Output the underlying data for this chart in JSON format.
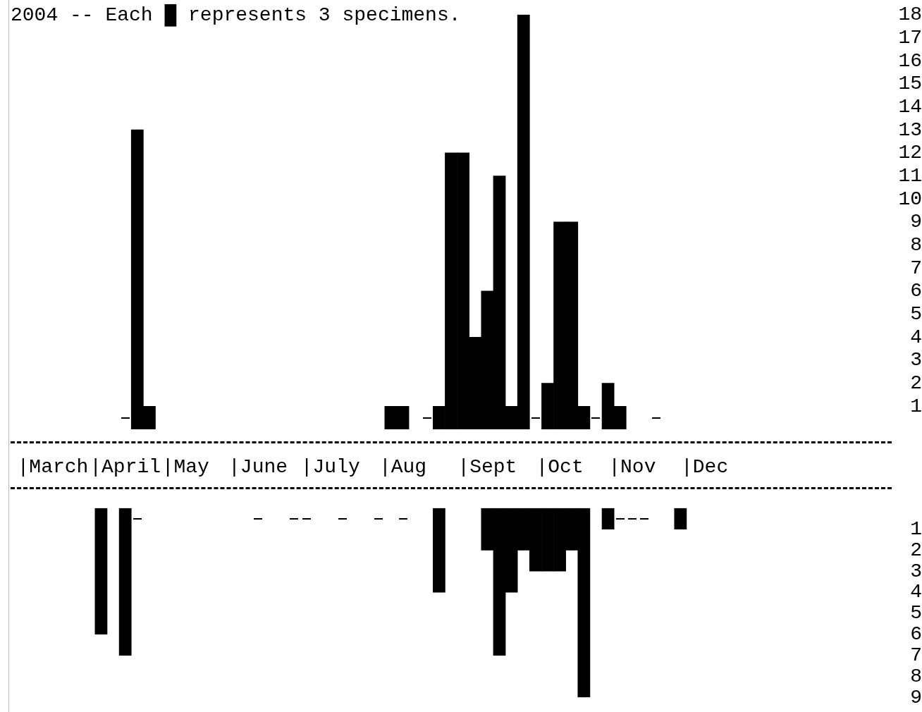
{
  "chart_data": [
    {
      "type": "bar",
      "title": "2004 -- Each █ represents 3 specimens.",
      "color": "#000000",
      "grid": false,
      "categories": [
        null,
        null,
        null,
        "|March",
        null,
        null,
        null,
        null,
        null,
        "|April",
        null,
        null,
        null,
        null,
        "|May",
        null,
        null,
        null,
        null,
        null,
        "|June",
        null,
        null,
        null,
        null,
        null,
        "|July",
        null,
        null,
        null,
        null,
        null,
        "|Aug",
        null,
        null,
        null,
        null,
        null,
        null,
        "|Sept",
        null,
        null,
        null,
        null,
        null,
        "|Oct",
        null,
        null,
        null,
        null,
        null,
        "|Nov",
        null,
        null,
        null,
        null,
        null,
        "|Dec",
        null,
        null,
        null,
        null,
        null,
        null,
        null,
        null,
        null,
        null,
        null,
        null,
        null,
        null,
        null
      ],
      "values": [
        null,
        null,
        null,
        null,
        null,
        null,
        null,
        null,
        null,
        0,
        13,
        1,
        null,
        null,
        null,
        null,
        null,
        null,
        null,
        null,
        null,
        null,
        null,
        null,
        null,
        null,
        null,
        null,
        null,
        null,
        null,
        1,
        1,
        null,
        0,
        1,
        12,
        12,
        4,
        6,
        11,
        1,
        18,
        0,
        2,
        9,
        9,
        1,
        0,
        2,
        1,
        null,
        null,
        0,
        null,
        null,
        null,
        null,
        null,
        null,
        null,
        null,
        null,
        null,
        null,
        null,
        null,
        null,
        null,
        null,
        null,
        null,
        null
      ],
      "ylim": [
        0,
        18
      ],
      "yticks": [
        1,
        2,
        3,
        4,
        5,
        6,
        7,
        8,
        9,
        10,
        11,
        12,
        13,
        14,
        15,
        16,
        17,
        18
      ]
    },
    {
      "type": "bar",
      "color": "#000000",
      "grid": false,
      "tick_labels": "y",
      "categories": [
        null,
        null,
        null,
        null,
        null,
        null,
        null,
        null,
        null,
        null,
        null,
        null,
        null,
        null,
        null,
        null,
        null,
        null,
        null,
        null,
        null,
        null,
        null,
        null,
        null,
        null,
        null,
        null,
        null,
        null,
        null,
        null,
        null,
        null,
        null,
        null,
        null,
        null,
        null,
        null,
        null,
        null,
        null,
        null,
        null,
        null,
        null,
        null,
        null,
        null,
        null,
        null,
        null,
        null,
        null,
        null,
        null,
        null,
        null,
        null,
        null,
        null,
        null,
        null,
        null,
        null,
        null,
        null,
        null,
        null,
        null,
        null,
        null
      ],
      "values": [
        null,
        null,
        null,
        null,
        null,
        null,
        null,
        6,
        null,
        7,
        0,
        null,
        null,
        null,
        null,
        null,
        null,
        null,
        null,
        null,
        0,
        null,
        null,
        0,
        0,
        null,
        null,
        0,
        null,
        null,
        0,
        null,
        0,
        null,
        null,
        4,
        null,
        null,
        null,
        2,
        7,
        4,
        2,
        3,
        3,
        3,
        2,
        9,
        null,
        1,
        0,
        0,
        0,
        null,
        null,
        1,
        null,
        null,
        null,
        null,
        null,
        null,
        null,
        null,
        null,
        null,
        null,
        null,
        null,
        null,
        null,
        null,
        null
      ],
      "ylim": [
        9,
        0
      ],
      "yticks": [
        1,
        2,
        3,
        4,
        5,
        6,
        7,
        8,
        9
      ]
    }
  ]
}
